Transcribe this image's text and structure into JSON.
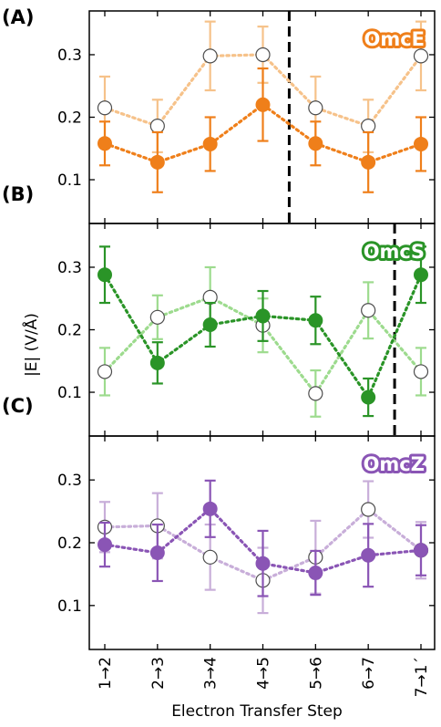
{
  "chart_data": {
    "type": "line",
    "title": "",
    "xlabel": "Electron Transfer Step",
    "ylabel": "|E| (V/Å)",
    "ylim": [
      0.03,
      0.37
    ],
    "y_ticks": [
      "0.1",
      "0.2",
      "0.3"
    ],
    "y_tick_values": [
      0.1,
      0.2,
      0.3
    ],
    "categories": [
      "1→2",
      "2→3",
      "3→4",
      "4→5",
      "5→6",
      "6→7",
      "7→1´"
    ],
    "grid": false,
    "panels": [
      {
        "label": "(A)",
        "protein": "OmcE",
        "color": "#ef7f1a",
        "light_color": "#f6c28a",
        "divider_after_index": 3.5,
        "series": [
          {
            "style": "filled",
            "values": [
              0.158,
              0.128,
              0.157,
              0.22,
              0.158,
              0.128,
              0.157
            ],
            "errors": [
              0.035,
              0.048,
              0.043,
              0.058,
              0.035,
              0.048,
              0.043
            ]
          },
          {
            "style": "open",
            "values": [
              0.215,
              0.186,
              0.298,
              0.3,
              0.215,
              0.186,
              0.298
            ],
            "errors": [
              0.05,
              0.042,
              0.055,
              0.045,
              0.05,
              0.042,
              0.055
            ]
          }
        ]
      },
      {
        "label": "(B)",
        "protein": "OmcS",
        "color": "#2a9427",
        "light_color": "#9ddb8e",
        "divider_after_index": 5.5,
        "series": [
          {
            "style": "filled",
            "values": [
              0.288,
              0.147,
              0.208,
              0.222,
              0.215,
              0.092,
              0.288
            ],
            "errors": [
              0.045,
              0.033,
              0.035,
              0.04,
              0.038,
              0.03,
              0.045
            ]
          },
          {
            "style": "open",
            "values": [
              0.133,
              0.22,
              0.252,
              0.207,
              0.098,
              0.231,
              0.133
            ],
            "errors": [
              0.038,
              0.035,
              0.048,
              0.043,
              0.037,
              0.045,
              0.038
            ]
          }
        ]
      },
      {
        "label": "(C)",
        "protein": "OmcZ",
        "color": "#8a55b5",
        "light_color": "#c8aed9",
        "divider_after_index": null,
        "series": [
          {
            "style": "filled",
            "values": [
              0.197,
              0.184,
              0.254,
              0.167,
              0.152,
              0.18,
              0.188
            ],
            "errors": [
              0.035,
              0.045,
              0.045,
              0.052,
              0.035,
              0.05,
              0.04
            ]
          },
          {
            "style": "open",
            "values": [
              0.225,
              0.227,
              0.177,
              0.14,
              0.177,
              0.253,
              0.188
            ],
            "errors": [
              0.04,
              0.052,
              0.052,
              0.052,
              0.058,
              0.045,
              0.045
            ]
          }
        ]
      }
    ]
  }
}
